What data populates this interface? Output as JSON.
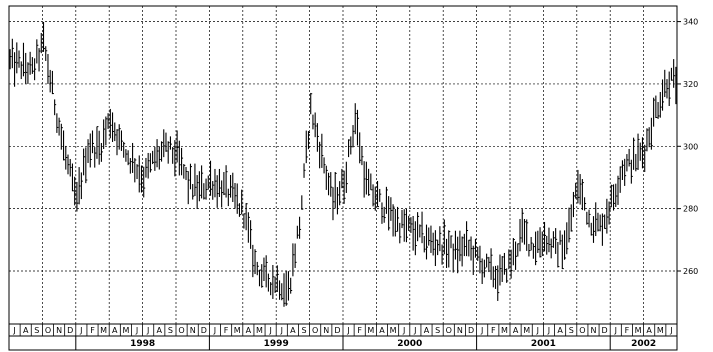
{
  "chart_data": {
    "type": "ohlc",
    "title": "",
    "xlabel": "",
    "ylabel": "",
    "ylim": [
      243,
      345
    ],
    "y_ticks": [
      260,
      280,
      300,
      320,
      340
    ],
    "grid": true,
    "x_start": "1997-07",
    "x_end": "2002-06",
    "months": [
      "J",
      "A",
      "S",
      "O",
      "N",
      "D",
      "J",
      "F",
      "M",
      "A",
      "M",
      "J",
      "J",
      "A",
      "S",
      "O",
      "N",
      "D",
      "J",
      "F",
      "M",
      "A",
      "M",
      "J",
      "J",
      "A",
      "S",
      "O",
      "N",
      "D",
      "J",
      "F",
      "M",
      "A",
      "M",
      "J",
      "J",
      "A",
      "S",
      "O",
      "N",
      "D",
      "J",
      "F",
      "M",
      "A",
      "M",
      "J",
      "J",
      "A",
      "S",
      "O",
      "N",
      "D",
      "J",
      "F",
      "M",
      "A",
      "M",
      "J"
    ],
    "years": [
      "1998",
      "1999",
      "2000",
      "2001",
      "2002"
    ],
    "series": [
      {
        "kind": "monthly-close-outline",
        "x": [
          "1997-07",
          "1997-08",
          "1997-09",
          "1997-10",
          "1997-11",
          "1997-12",
          "1998-01",
          "1998-02",
          "1998-03",
          "1998-04",
          "1998-05",
          "1998-06",
          "1998-07",
          "1998-08",
          "1998-09",
          "1998-10",
          "1998-11",
          "1998-12",
          "1999-01",
          "1999-02",
          "1999-03",
          "1999-04",
          "1999-05",
          "1999-06",
          "1999-07",
          "1999-08",
          "1999-09",
          "1999-10",
          "1999-11",
          "1999-12",
          "2000-01",
          "2000-02",
          "2000-03",
          "2000-04",
          "2000-05",
          "2000-06",
          "2000-07",
          "2000-08",
          "2000-09",
          "2000-10",
          "2000-11",
          "2000-12",
          "2001-01",
          "2001-02",
          "2001-03",
          "2001-04",
          "2001-05",
          "2001-06",
          "2001-07",
          "2001-08",
          "2001-09",
          "2001-10",
          "2001-11",
          "2001-12",
          "2002-01",
          "2002-02",
          "2002-03",
          "2002-04",
          "2002-05",
          "2002-06"
        ],
        "values": [
          327,
          326,
          324,
          333,
          314,
          296,
          282,
          300,
          299,
          309,
          300,
          295,
          290,
          296,
          299,
          297,
          288,
          286,
          289,
          287,
          284,
          279,
          262,
          257,
          257,
          254,
          275,
          312,
          297,
          282,
          289,
          309,
          288,
          283,
          279,
          275,
          273,
          271,
          269,
          268,
          266,
          268,
          264,
          260,
          258,
          263,
          272,
          268,
          271,
          267,
          270,
          288,
          277,
          274,
          282,
          293,
          295,
          299,
          312,
          321
        ]
      }
    ]
  }
}
